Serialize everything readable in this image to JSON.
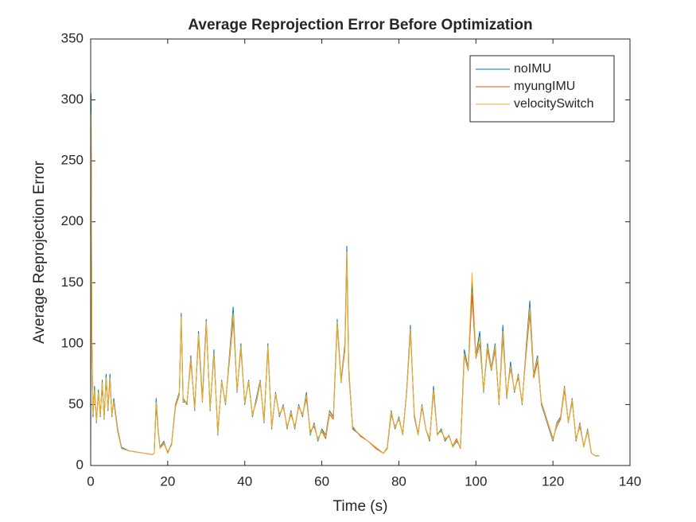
{
  "chart_data": {
    "type": "line",
    "title": "Average Reprojection Error Before Optimization",
    "xlabel": "Time (s)",
    "ylabel": "Average Reprojection Error",
    "x": [
      0,
      0.1,
      0.3,
      0.6,
      1,
      1.5,
      2,
      2.5,
      3,
      3.5,
      4,
      4.5,
      5,
      5.5,
      6,
      7,
      8,
      10,
      12,
      14,
      16,
      16.5,
      17,
      17.5,
      18,
      19,
      20,
      21,
      22,
      23,
      23.5,
      24,
      25,
      26,
      27,
      28,
      29,
      30,
      31,
      32,
      33,
      34,
      35,
      36,
      37,
      38,
      39,
      40,
      41,
      42,
      43,
      44,
      45,
      46,
      47,
      48,
      49,
      50,
      51,
      52,
      53,
      54,
      55,
      56,
      57,
      58,
      59,
      60,
      61,
      62,
      63,
      64,
      65,
      66,
      66.5,
      67,
      68,
      70,
      72,
      74,
      76,
      77,
      78,
      79,
      80,
      81,
      82,
      83,
      84,
      85,
      86,
      87,
      88,
      89,
      90,
      91,
      92,
      93,
      94,
      95,
      96,
      97,
      98,
      99,
      100,
      101,
      102,
      103,
      104,
      105,
      106,
      107,
      108,
      109,
      110,
      111,
      112,
      113,
      114,
      115,
      116,
      117,
      118,
      119,
      120,
      121,
      122,
      123,
      124,
      125,
      126,
      127,
      128,
      129,
      130,
      131,
      132
    ],
    "series": [
      {
        "name": "noIMU",
        "color": "#0072BD",
        "values": [
          5,
          305,
          110,
          40,
          65,
          35,
          62,
          40,
          70,
          38,
          75,
          45,
          75,
          40,
          55,
          30,
          15,
          12,
          11,
          10,
          9,
          10,
          55,
          30,
          15,
          20,
          10,
          18,
          50,
          60,
          125,
          55,
          50,
          90,
          45,
          110,
          55,
          120,
          45,
          95,
          25,
          70,
          50,
          90,
          130,
          60,
          100,
          50,
          70,
          40,
          55,
          70,
          35,
          100,
          30,
          60,
          40,
          50,
          30,
          45,
          30,
          50,
          40,
          60,
          25,
          35,
          20,
          30,
          25,
          45,
          40,
          120,
          70,
          100,
          180,
          80,
          30,
          25,
          20,
          15,
          10,
          15,
          45,
          30,
          40,
          25,
          60,
          115,
          40,
          25,
          50,
          30,
          20,
          65,
          25,
          30,
          20,
          25,
          15,
          20,
          15,
          95,
          80,
          150,
          90,
          110,
          60,
          100,
          80,
          100,
          50,
          115,
          55,
          85,
          60,
          75,
          50,
          95,
          135,
          75,
          90,
          50,
          40,
          30,
          20,
          35,
          40,
          65,
          35,
          55,
          20,
          35,
          15,
          30,
          10,
          8,
          8
        ]
      },
      {
        "name": "myungIMU",
        "color": "#D95319",
        "values": [
          5,
          290,
          100,
          45,
          60,
          38,
          58,
          42,
          65,
          40,
          70,
          48,
          70,
          42,
          52,
          28,
          14,
          12,
          11,
          10,
          9,
          10,
          50,
          28,
          14,
          18,
          11,
          17,
          48,
          58,
          120,
          52,
          52,
          85,
          48,
          105,
          52,
          115,
          48,
          90,
          28,
          68,
          52,
          85,
          120,
          62,
          95,
          52,
          68,
          42,
          52,
          68,
          38,
          95,
          32,
          58,
          42,
          48,
          32,
          42,
          32,
          48,
          42,
          55,
          28,
          32,
          22,
          28,
          22,
          42,
          38,
          115,
          68,
          95,
          170,
          75,
          32,
          24,
          20,
          14,
          10,
          14,
          42,
          32,
          38,
          26,
          58,
          110,
          42,
          26,
          48,
          30,
          22,
          60,
          26,
          28,
          22,
          24,
          16,
          22,
          14,
          90,
          78,
          140,
          88,
          100,
          62,
          95,
          78,
          95,
          52,
          105,
          58,
          80,
          62,
          72,
          52,
          90,
          125,
          72,
          85,
          52,
          42,
          32,
          22,
          32,
          38,
          62,
          36,
          52,
          22,
          32,
          16,
          28,
          10,
          8,
          8
        ]
      },
      {
        "name": "velocitySwitch",
        "color": "#EDB120",
        "values": [
          5,
          288,
          95,
          42,
          62,
          36,
          60,
          41,
          68,
          39,
          72,
          46,
          72,
          41,
          53,
          29,
          14,
          12,
          11,
          10,
          9,
          10,
          52,
          29,
          14,
          19,
          10,
          17,
          49,
          59,
          122,
          53,
          51,
          88,
          46,
          108,
          53,
          118,
          46,
          92,
          26,
          69,
          51,
          88,
          125,
          61,
          98,
          51,
          69,
          41,
          53,
          69,
          36,
          98,
          31,
          59,
          41,
          49,
          31,
          44,
          31,
          49,
          41,
          58,
          26,
          34,
          21,
          29,
          24,
          44,
          39,
          118,
          69,
          98,
          175,
          78,
          31,
          25,
          20,
          15,
          10,
          15,
          44,
          31,
          39,
          25,
          59,
          112,
          41,
          25,
          49,
          30,
          21,
          62,
          25,
          29,
          21,
          25,
          15,
          21,
          15,
          92,
          79,
          158,
          89,
          105,
          61,
          98,
          79,
          98,
          51,
          110,
          56,
          82,
          61,
          74,
          51,
          92,
          130,
          74,
          88,
          51,
          41,
          31,
          21,
          34,
          39,
          64,
          35,
          54,
          21,
          34,
          15,
          29,
          10,
          8,
          8
        ]
      }
    ],
    "xlim": [
      0,
      140
    ],
    "xticks": [
      0,
      20,
      40,
      60,
      80,
      100,
      120,
      140
    ],
    "ylim": [
      0,
      350
    ],
    "yticks": [
      0,
      50,
      100,
      150,
      200,
      250,
      300,
      350
    ],
    "grid": false,
    "legend": "top-right"
  }
}
